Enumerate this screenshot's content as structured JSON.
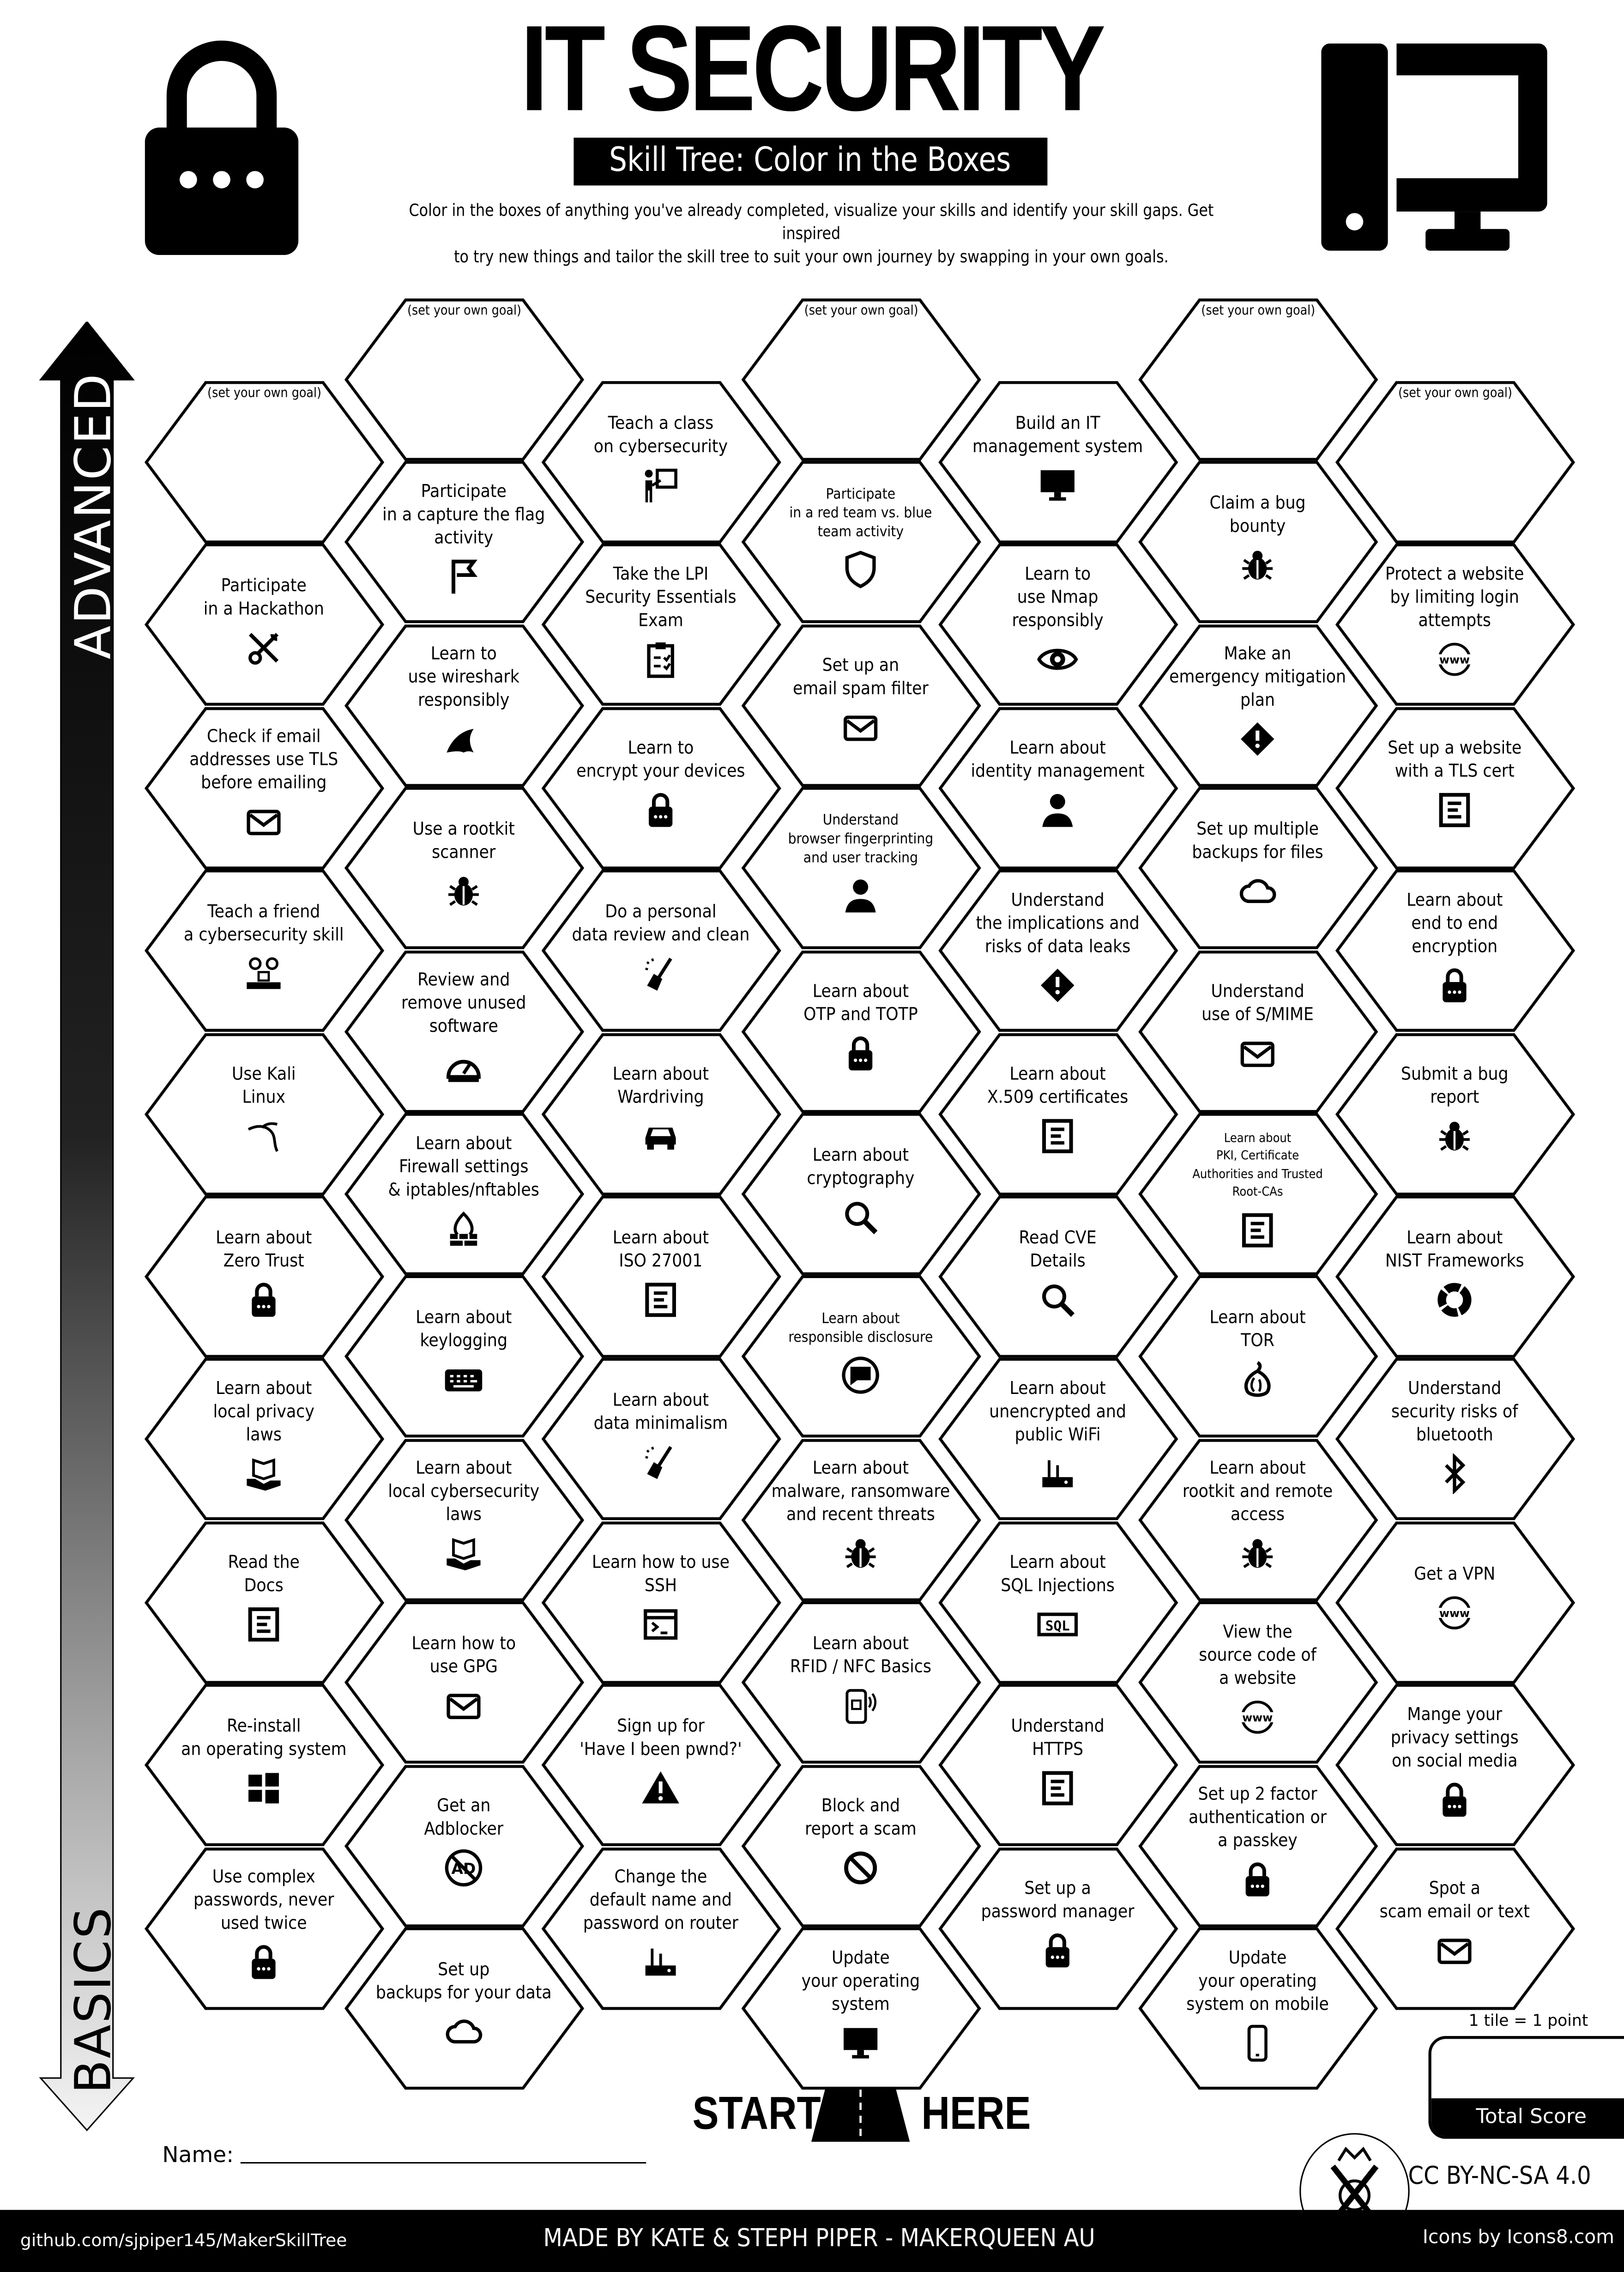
{
  "header": {
    "title": "IT SECURITY",
    "subtitle": "Skill Tree: Color in the Boxes",
    "description_lines": [
      "Color in the boxes of anything you've already completed, visualize your skills and identify your skill gaps.  Get inspired",
      "to try new things and tailor the skill tree to suit your own journey by swapping in your own goals."
    ],
    "left_icon": "padlock-icon",
    "right_icon": "desktop-computer-icon"
  },
  "axis": {
    "top_label": "ADVANCED",
    "bottom_label": "BASICS"
  },
  "goal_placeholder": "(set your own goal)",
  "columns": [
    [
      {
        "goal": true
      },
      {
        "label": "Participate\nin a Hackathon",
        "icon": "tools"
      },
      {
        "label": "Check if email\naddresses use TLS\nbefore emailing",
        "icon": "envelope"
      },
      {
        "label": "Teach a friend\na cybersecurity skill",
        "icon": "people"
      },
      {
        "label": "Use Kali\nLinux",
        "icon": "kali"
      },
      {
        "label": "Learn about\nZero Trust",
        "icon": "lock"
      },
      {
        "label": "Learn about\nlocal privacy\nlaws",
        "icon": "book-hand"
      },
      {
        "label": "Read the\nDocs",
        "icon": "document"
      },
      {
        "label": "Re-install\nan operating system",
        "icon": "windows"
      },
      {
        "label": "Use complex\npasswords, never\nused twice",
        "icon": "lock"
      }
    ],
    [
      {
        "goal": true
      },
      {
        "label": "Participate\nin a capture the flag\nactivity",
        "icon": "flag"
      },
      {
        "label": "Learn to\nuse wireshark\nresponsibly",
        "icon": "shark-fin"
      },
      {
        "label": "Use a rootkit\nscanner",
        "icon": "bug"
      },
      {
        "label": "Review and\nremove unused\nsoftware",
        "icon": "gauge"
      },
      {
        "label": "Learn about\nFirewall settings\n& iptables/nftables",
        "icon": "firewall"
      },
      {
        "label": "Learn about\nkeylogging",
        "icon": "keyboard"
      },
      {
        "label": "Learn about\nlocal cybersecurity\nlaws",
        "icon": "book-hand"
      },
      {
        "label": "Learn how to\nuse GPG",
        "icon": "envelope"
      },
      {
        "label": "Get an\nAdblocker",
        "icon": "no-ads"
      },
      {
        "label": "Set up\nbackups for your data",
        "icon": "cloud"
      }
    ],
    [
      {
        "label": "Teach a class\non cybersecurity",
        "icon": "presenter"
      },
      {
        "label": "Take the LPI\nSecurity Essentials\nExam",
        "icon": "clipboard"
      },
      {
        "label": "Learn to\nencrypt your devices",
        "icon": "lock"
      },
      {
        "label": "Do a personal\ndata review and clean",
        "icon": "broom"
      },
      {
        "label": "Learn about\nWardriving",
        "icon": "car"
      },
      {
        "label": "Learn about\nISO 27001",
        "icon": "document"
      },
      {
        "label": "Learn about\ndata minimalism",
        "icon": "broom"
      },
      {
        "label": "Learn how to use\nSSH",
        "icon": "terminal"
      },
      {
        "label": "Sign up for\n'Have I been pwnd?'",
        "icon": "warning"
      },
      {
        "label": "Change the\ndefault name and\npassword on router",
        "icon": "router"
      }
    ],
    [
      {
        "goal": true
      },
      {
        "label": "Participate\nin a red team vs. blue\nteam activity",
        "icon": "shield"
      },
      {
        "label": "Set up an\nemail spam filter",
        "icon": "envelope"
      },
      {
        "label": "Understand\nbrowser fingerprinting\nand user tracking",
        "icon": "person"
      },
      {
        "label": "Learn about\nOTP and TOTP",
        "icon": "lock"
      },
      {
        "label": "Learn about\ncryptography",
        "icon": "magnifier"
      },
      {
        "label": "Learn about\nresponsible disclosure",
        "icon": "chat"
      },
      {
        "label": "Learn about\nmalware, ransomware\nand recent threats",
        "icon": "bug"
      },
      {
        "label": "Learn about\nRFID / NFC Basics",
        "icon": "nfc-phone"
      },
      {
        "label": "Block and\nreport a scam",
        "icon": "ban"
      },
      {
        "label": "Update\nyour operating\nsystem",
        "icon": "monitor"
      }
    ],
    [
      {
        "label": "Build an IT\nmanagement system",
        "icon": "monitor"
      },
      {
        "label": "Learn to\nuse Nmap\nresponsibly",
        "icon": "eye"
      },
      {
        "label": "Learn about\nidentity management",
        "icon": "person"
      },
      {
        "label": "Understand\nthe implications and\nrisks of data leaks",
        "icon": "warning-diamond"
      },
      {
        "label": "Learn about\nX.509 certificates",
        "icon": "document"
      },
      {
        "label": "Read CVE\nDetails",
        "icon": "magnifier"
      },
      {
        "label": "Learn about\nunencrypted and\npublic WiFi",
        "icon": "router"
      },
      {
        "label": "Learn about\nSQL Injections",
        "icon": "sql"
      },
      {
        "label": "Understand\nHTTPS",
        "icon": "document"
      },
      {
        "label": "Set up a\npassword manager",
        "icon": "lock"
      }
    ],
    [
      {
        "goal": true
      },
      {
        "label": "Claim a bug\nbounty",
        "icon": "bug"
      },
      {
        "label": "Make an\nemergency mitigation\nplan",
        "icon": "warning-diamond"
      },
      {
        "label": "Set up multiple\nbackups for files",
        "icon": "cloud"
      },
      {
        "label": "Understand\nuse of S/MIME",
        "icon": "envelope"
      },
      {
        "label": "Learn about\nPKI, Certificate\nAuthorities and Trusted\nRoot-CAs",
        "icon": "document"
      },
      {
        "label": "Learn about\nTOR",
        "icon": "onion"
      },
      {
        "label": "Learn about\nrootkit and remote\naccess",
        "icon": "bug"
      },
      {
        "label": "View the\nsource code of\na website",
        "icon": "www"
      },
      {
        "label": "Set up 2 factor\nauthentication or\na passkey",
        "icon": "lock"
      },
      {
        "label": "Update\nyour operating\nsystem on mobile",
        "icon": "phone"
      }
    ],
    [
      {
        "goal": true
      },
      {
        "label": "Protect a website\nby limiting login\nattempts",
        "icon": "www"
      },
      {
        "label": "Set up a website\nwith a TLS cert",
        "icon": "document"
      },
      {
        "label": "Learn about\nend to end\nencryption",
        "icon": "lock"
      },
      {
        "label": "Submit a bug\nreport",
        "icon": "bug"
      },
      {
        "label": "Learn about\nNIST Frameworks",
        "icon": "ring"
      },
      {
        "label": "Understand\nsecurity risks of\nbluetooth",
        "icon": "bluetooth"
      },
      {
        "label": "Get a VPN",
        "icon": "www"
      },
      {
        "label": "Mange your\nprivacy settings\non social media",
        "icon": "lock"
      },
      {
        "label": "Spot a\nscam email or text",
        "icon": "envelope"
      }
    ]
  ],
  "start": {
    "left": "START",
    "right": "HERE",
    "icon": "road-icon"
  },
  "name_label": "Name:",
  "score": {
    "rule": "1 tile = 1 point",
    "label": "Total Score"
  },
  "license": "CC BY-NC-SA 4.0",
  "footer": {
    "github": "github.com/sjpiper145/MakerSkillTree",
    "credit": "MADE BY KATE & STEPH PIPER  -  MAKERQUEEN AU",
    "icons_credit": "Icons by Icons8.com"
  }
}
